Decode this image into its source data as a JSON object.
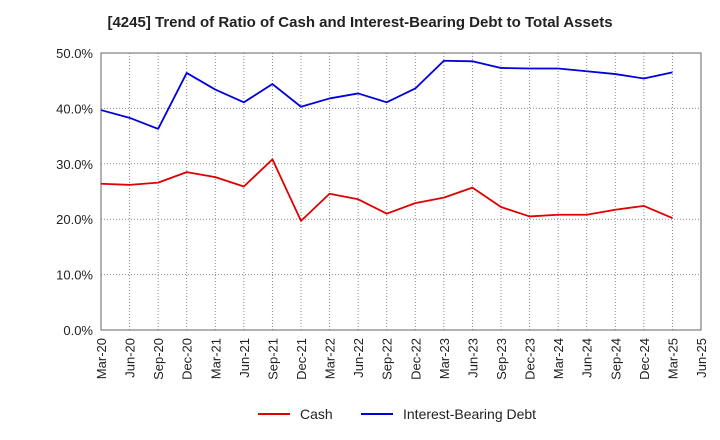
{
  "chart_data": {
    "type": "line",
    "title": "[4245]  Trend of Ratio of Cash and Interest-Bearing Debt to Total Assets",
    "xlabel": "",
    "ylabel": "",
    "ylim": [
      0,
      50
    ],
    "yticks": [
      "0.0%",
      "10.0%",
      "20.0%",
      "30.0%",
      "40.0%",
      "50.0%"
    ],
    "ytick_values": [
      0,
      10,
      20,
      30,
      40,
      50
    ],
    "categories": [
      "Mar-20",
      "Jun-20",
      "Sep-20",
      "Dec-20",
      "Mar-21",
      "Jun-21",
      "Sep-21",
      "Dec-21",
      "Mar-22",
      "Jun-22",
      "Sep-22",
      "Dec-22",
      "Mar-23",
      "Jun-23",
      "Sep-23",
      "Dec-23",
      "Mar-24",
      "Jun-24",
      "Sep-24",
      "Dec-24",
      "Mar-25",
      "Jun-25"
    ],
    "grid": true,
    "legend_position": "bottom",
    "series": [
      {
        "name": "Cash",
        "color": "#e00000",
        "values": [
          26.4,
          26.2,
          26.6,
          28.5,
          27.6,
          25.9,
          30.8,
          19.7,
          24.6,
          23.6,
          21.0,
          22.9,
          23.9,
          25.7,
          22.2,
          20.5,
          20.8,
          20.8,
          21.7,
          22.4,
          20.2,
          null
        ]
      },
      {
        "name": "Interest-Bearing Debt",
        "color": "#0000dd",
        "values": [
          39.7,
          38.3,
          36.3,
          46.4,
          43.4,
          41.1,
          44.4,
          40.3,
          41.8,
          42.7,
          41.1,
          43.6,
          48.6,
          48.5,
          47.3,
          47.2,
          47.2,
          46.7,
          46.2,
          45.4,
          46.5,
          null
        ]
      }
    ]
  }
}
